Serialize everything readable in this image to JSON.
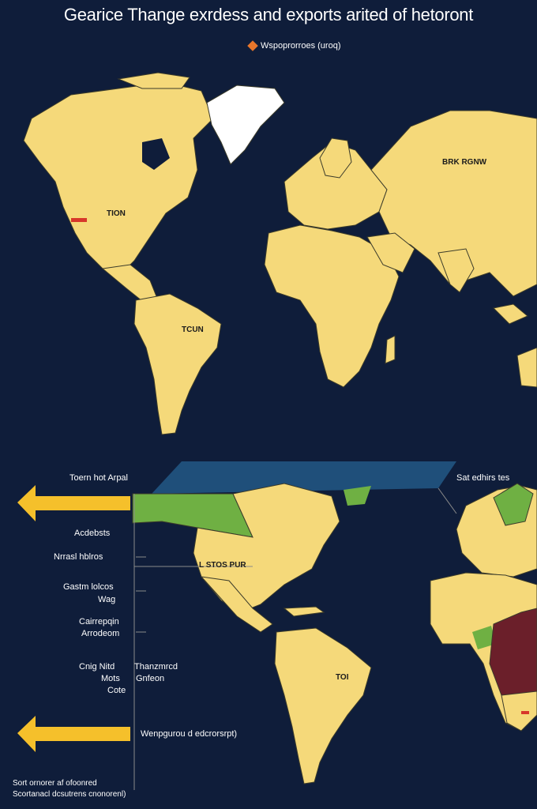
{
  "title": "Gearice Thange exrdess and exports arited of hetoront",
  "legend": {
    "label": "Wspoprorroes (uroq)",
    "swatch_color": "#e8762b"
  },
  "top_map": {
    "labels": {
      "russia": "BRK RGNW",
      "usa": "TION",
      "brazil": "TCUN"
    }
  },
  "bottom_map": {
    "banner_left": "Toern hot Arpal",
    "banner_right": "Sat edhirs tes",
    "usa_label": "L STOS PUR",
    "sa_label": "TOI",
    "left_labels": [
      "Acdebsts",
      "Nrrasl hblros",
      "Gastm lolcos",
      "Wag",
      "Cairrepqin",
      "Arrodeom",
      "Cnig Nitd",
      "Mots",
      "Cote"
    ],
    "mid_labels": [
      "Thanzmrcd",
      "Gnfeon"
    ],
    "arrow_caption": "Wenpgurou d edcrorsrpt)"
  },
  "footnotes": [
    "Sort ornorer af ofoonred",
    "Scortanacl dcsutrens cnonorenl)"
  ],
  "colors": {
    "ocean": "#0f1d3a",
    "land": "#f5d97a",
    "border": "#3b3b2a",
    "greenland": "#ffffff",
    "green": "#6fb043",
    "maroon": "#6b1f2a",
    "banner": "#1f4f7a",
    "arrow": "#f5c02b"
  }
}
